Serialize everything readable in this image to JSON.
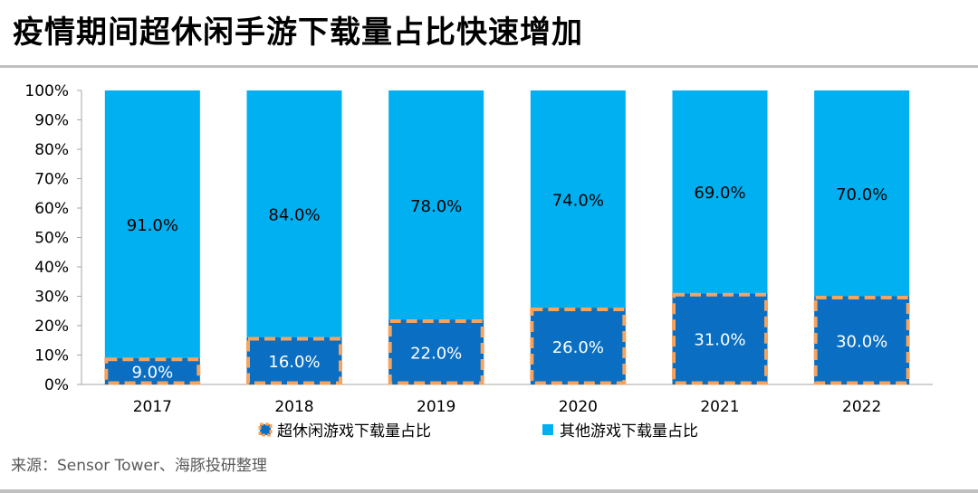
{
  "title": "疫情期间超休闲手游下载量占比快速增加",
  "source": "来源：Sensor Tower、海豚投研整理",
  "colors": {
    "hyper": "#0a6fc2",
    "other": "#00b0f0",
    "dash": "#f4a460"
  },
  "chart_data": {
    "type": "bar",
    "stacked": true,
    "percent": true,
    "categories": [
      "2017",
      "2018",
      "2019",
      "2020",
      "2021",
      "2022"
    ],
    "series": [
      {
        "name": "超休闲游戏下载量占比",
        "values": [
          9.0,
          16.0,
          22.0,
          26.0,
          31.0,
          30.0
        ],
        "labels": [
          "9.0%",
          "16.0%",
          "22.0%",
          "26.0%",
          "31.0%",
          "30.0%"
        ]
      },
      {
        "name": "其他游戏下载量占比",
        "values": [
          91.0,
          84.0,
          78.0,
          74.0,
          69.0,
          70.0
        ],
        "labels": [
          "91.0%",
          "84.0%",
          "78.0%",
          "74.0%",
          "69.0%",
          "70.0%"
        ]
      }
    ],
    "ylim": [
      0,
      100
    ],
    "yticks": [
      "0%",
      "10%",
      "20%",
      "30%",
      "40%",
      "50%",
      "60%",
      "70%",
      "80%",
      "90%",
      "100%"
    ],
    "legend_position": "bottom"
  }
}
